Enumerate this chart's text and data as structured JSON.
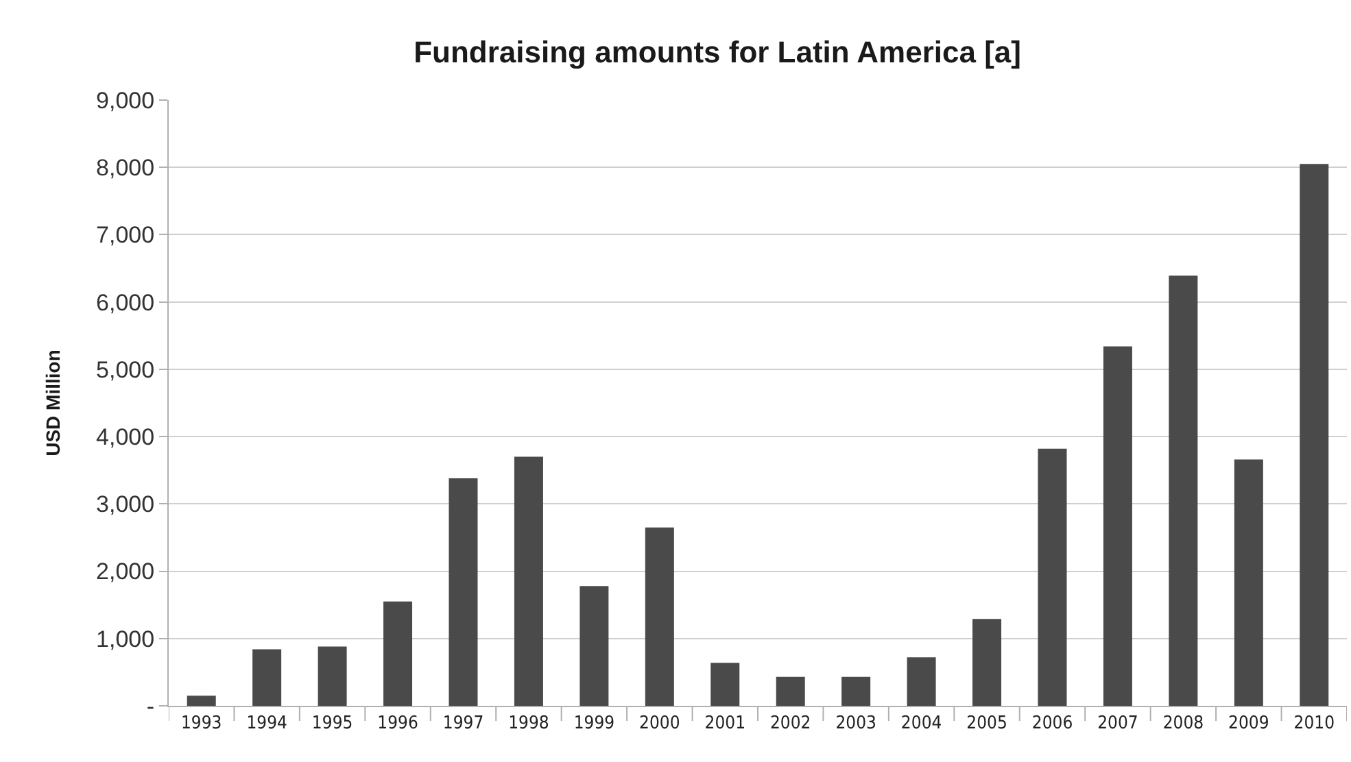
{
  "chart_data": {
    "type": "bar",
    "title": "Fundraising amounts for Latin America [a]",
    "ylabel": "USD Million",
    "categories": [
      "1993",
      "1994",
      "1995",
      "1996",
      "1997",
      "1998",
      "1999",
      "2000",
      "2001",
      "2002",
      "2003",
      "2004",
      "2005",
      "2006",
      "2007",
      "2008",
      "2009",
      "2010"
    ],
    "values": [
      150,
      840,
      880,
      1550,
      3380,
      3700,
      1780,
      2650,
      640,
      430,
      430,
      720,
      1290,
      3820,
      5340,
      6390,
      3660,
      8050
    ],
    "color": "#4a4a4a",
    "ylim": [
      0,
      9000
    ],
    "yticks": [
      {
        "value": 0,
        "label": "-"
      },
      {
        "value": 1000,
        "label": "1,000"
      },
      {
        "value": 2000,
        "label": "2,000"
      },
      {
        "value": 3000,
        "label": "3,000"
      },
      {
        "value": 4000,
        "label": "4,000"
      },
      {
        "value": 5000,
        "label": "5,000"
      },
      {
        "value": 6000,
        "label": "6,000"
      },
      {
        "value": 7000,
        "label": "7,000"
      },
      {
        "value": 8000,
        "label": "8,000"
      },
      {
        "value": 9000,
        "label": "9,000"
      }
    ],
    "grid": "y"
  }
}
